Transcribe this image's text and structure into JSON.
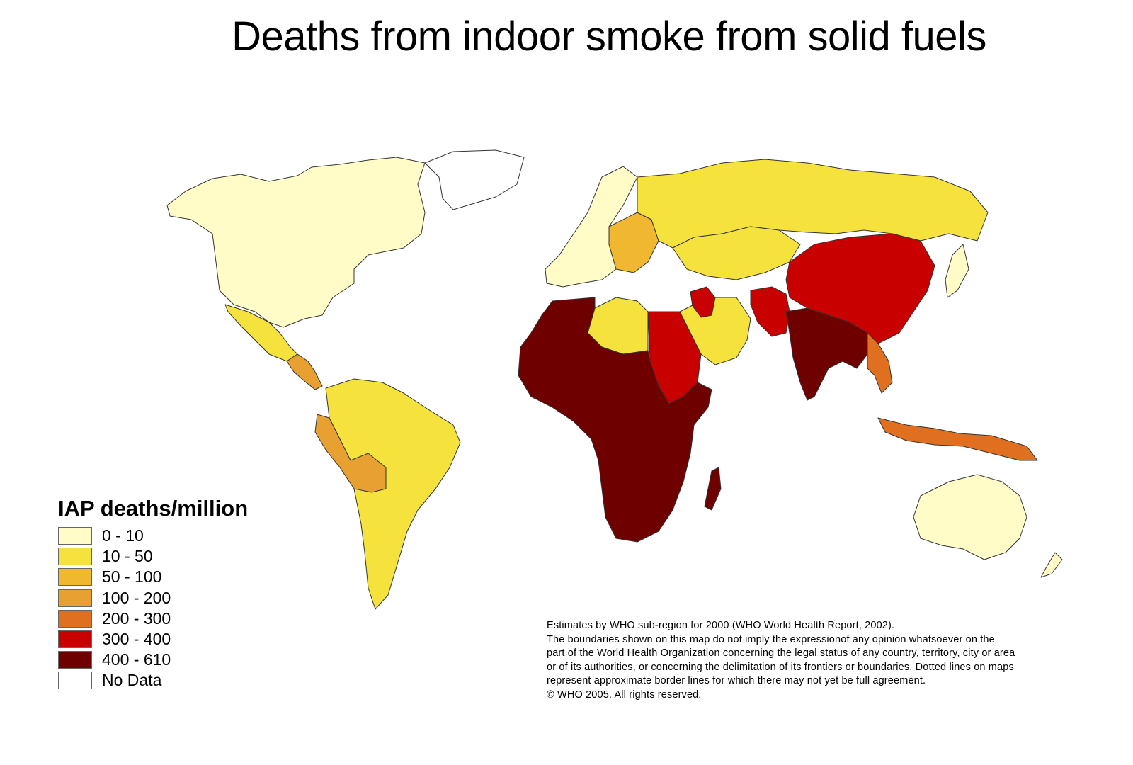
{
  "title": "Deaths from indoor smoke from solid fuels",
  "legend": {
    "title": "IAP deaths/million",
    "items": [
      {
        "label": "0 - 10",
        "color": "#fffcc8"
      },
      {
        "label": "10 - 50",
        "color": "#f5e23c"
      },
      {
        "label": "50 - 100",
        "color": "#f0b830"
      },
      {
        "label": "100 - 200",
        "color": "#e8a030"
      },
      {
        "label": "200 - 300",
        "color": "#e07020"
      },
      {
        "label": "300 - 400",
        "color": "#c80000"
      },
      {
        "label": "400 - 610",
        "color": "#6e0000"
      },
      {
        "label": "No Data",
        "color": "#ffffff"
      }
    ]
  },
  "note": [
    "Estimates by WHO sub-region for 2000 (WHO World Health Report, 2002).",
    "The boundaries shown on this map do not imply the expressionof any opinion whatsoever on the",
    " part of the World Health Organization concerning the legal status of any country, territory, city or area",
    "or of its authorities, or concerning the delimitation of its frontiers or boundaries.  Dotted lines on maps",
    "represent approximate border lines for which there may not yet be full agreement.",
    "© WHO 2005. All rights reserved."
  ],
  "regions": [
    {
      "name": "north-america",
      "category": "0 - 10"
    },
    {
      "name": "greenland",
      "category": "No Data"
    },
    {
      "name": "mexico",
      "category": "10 - 50"
    },
    {
      "name": "central-america",
      "category": "100 - 200"
    },
    {
      "name": "south-america-north",
      "category": "10 - 50"
    },
    {
      "name": "andes",
      "category": "100 - 200"
    },
    {
      "name": "western-europe",
      "category": "0 - 10"
    },
    {
      "name": "eastern-europe",
      "category": "50 - 100"
    },
    {
      "name": "russia",
      "category": "10 - 50"
    },
    {
      "name": "central-asia",
      "category": "10 - 50"
    },
    {
      "name": "north-africa",
      "category": "10 - 50"
    },
    {
      "name": "egypt-sudan",
      "category": "300 - 400"
    },
    {
      "name": "sub-saharan-africa",
      "category": "400 - 610"
    },
    {
      "name": "middle-east",
      "category": "10 - 50"
    },
    {
      "name": "iraq",
      "category": "300 - 400"
    },
    {
      "name": "south-asia",
      "category": "400 - 610"
    },
    {
      "name": "pakistan-afghanistan",
      "category": "300 - 400"
    },
    {
      "name": "china",
      "category": "300 - 400"
    },
    {
      "name": "southeast-asia",
      "category": "200 - 300"
    },
    {
      "name": "indonesia",
      "category": "200 - 300"
    },
    {
      "name": "japan",
      "category": "0 - 10"
    },
    {
      "name": "australia",
      "category": "0 - 10"
    }
  ]
}
